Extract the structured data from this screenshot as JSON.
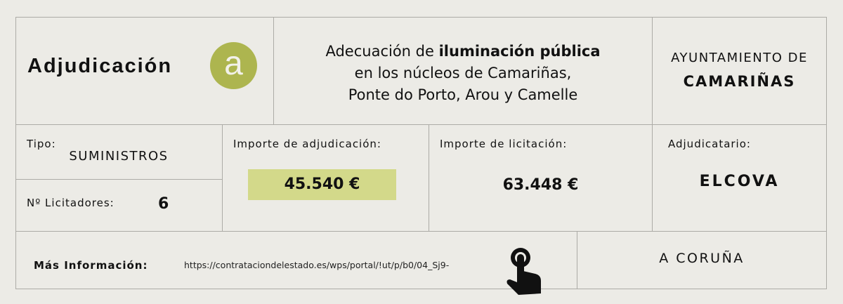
{
  "header": {
    "title": "Adjudicación",
    "badge_letter": "a",
    "project_line1_normal": "Adecuación de ",
    "project_line1_bold": "iluminación pública",
    "project_line2": "en los núcleos de Camariñas,",
    "project_line3": "Ponte do Porto, Arou y Camelle",
    "entity_line1": "AYUNTAMIENTO DE",
    "entity_line2": "CAMARIÑAS"
  },
  "details": {
    "tipo_label": "Tipo:",
    "tipo_value": "SUMINISTROS",
    "licitadores_label": "Nº Licitadores:",
    "licitadores_value": "6",
    "adjudicacion_label": "Importe de adjudicación:",
    "adjudicacion_value": "45.540 €",
    "licitacion_label": "Importe de licitación:",
    "licitacion_value": "63.448 €",
    "adjudicatario_label": "Adjudicatario:",
    "adjudicatario_value": "ELCOVA"
  },
  "footer": {
    "info_label": "Más Información:",
    "url": "https://contrataciondelestado.es/wps/portal/!ut/p/b0/04_Sj9-",
    "province": "A CORUÑA",
    "pointer_icon": "hand-pointer-icon"
  },
  "colors": {
    "accent": "#adb54f",
    "highlight": "#d3d98a",
    "background": "#ecebe6"
  }
}
